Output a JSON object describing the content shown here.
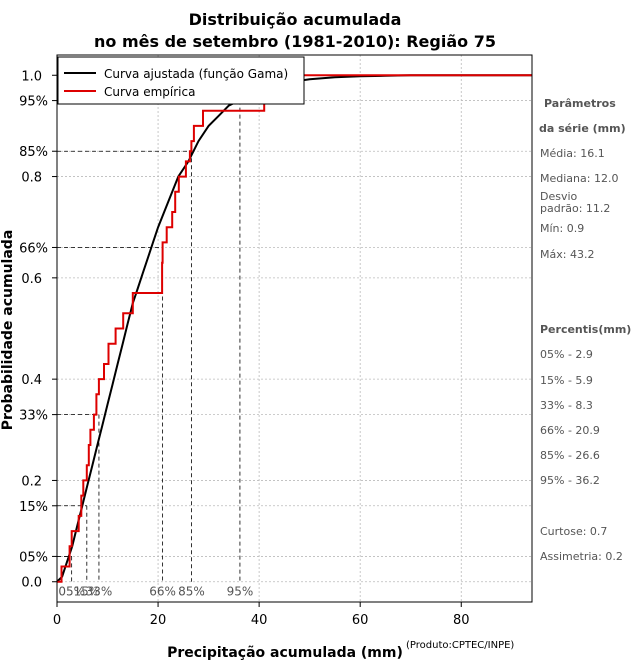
{
  "chart_data": {
    "type": "line",
    "title_line1": "Distribuição acumulada",
    "title_line2": "no mês de setembro (1981-2010): Região 75",
    "xlabel": "Precipitação acumulada (mm)",
    "ylabel": "Probabilidade acumulada",
    "credit": "(Produto:CPTEC/INPE)",
    "xlim": [
      0,
      94
    ],
    "ylim": [
      -0.04,
      1.04
    ],
    "x_ticks": [
      0,
      20,
      40,
      60,
      80
    ],
    "x_tick_labels": [
      "0",
      "20",
      "40",
      "60",
      "80"
    ],
    "y_ticks": [
      0.0,
      0.2,
      0.4,
      0.6,
      0.8,
      1.0
    ],
    "y_tick_labels": [
      "0.0",
      "0.2",
      "0.4",
      "0.6",
      "0.8",
      "1.0"
    ],
    "y_pct_ticks": [
      0.05,
      0.15,
      0.33,
      0.66,
      0.85,
      0.95
    ],
    "y_pct_labels": [
      "05%",
      "15%",
      "33%",
      "66%",
      "85%",
      "95%"
    ],
    "grid": true,
    "legend_position": "top-left",
    "colors": {
      "fitted": "#000000",
      "empirical": "#dd0000",
      "grid": "#bbbbbb",
      "axis_text": "#555555"
    },
    "series": [
      {
        "name": "Curva ajustada (função Gama)",
        "x": [
          0,
          1,
          2,
          3,
          4,
          5,
          6,
          7,
          8,
          9,
          10,
          11,
          12,
          13,
          14,
          15,
          16,
          17,
          18,
          19,
          20,
          22,
          24,
          26,
          28,
          30,
          32,
          34,
          36,
          38,
          40,
          42,
          45,
          50,
          55,
          60,
          65,
          70,
          80,
          94
        ],
        "y": [
          0.0,
          0.01,
          0.04,
          0.07,
          0.11,
          0.15,
          0.19,
          0.23,
          0.27,
          0.31,
          0.35,
          0.39,
          0.43,
          0.47,
          0.51,
          0.55,
          0.58,
          0.61,
          0.64,
          0.67,
          0.7,
          0.75,
          0.8,
          0.83,
          0.87,
          0.9,
          0.92,
          0.94,
          0.95,
          0.96,
          0.97,
          0.98,
          0.985,
          0.992,
          0.996,
          0.998,
          0.999,
          1.0,
          1.0,
          1.0
        ]
      },
      {
        "name": "Curva empírica",
        "x": [
          0,
          0.9,
          2.5,
          2.9,
          4.3,
          4.8,
          5.2,
          5.9,
          6.3,
          6.6,
          7.3,
          7.8,
          8.3,
          9.3,
          10.2,
          11.6,
          13.1,
          15.0,
          20.8,
          20.9,
          21.7,
          22.8,
          23.4,
          24.1,
          25.5,
          26.3,
          26.6,
          27.1,
          28.9,
          30.0,
          36.2,
          41.0,
          43.2,
          94
        ],
        "y": [
          0.0,
          0.03,
          0.07,
          0.1,
          0.13,
          0.17,
          0.2,
          0.23,
          0.27,
          0.3,
          0.33,
          0.37,
          0.4,
          0.43,
          0.47,
          0.5,
          0.53,
          0.57,
          0.63,
          0.67,
          0.7,
          0.73,
          0.77,
          0.8,
          0.83,
          0.85,
          0.87,
          0.9,
          0.93,
          0.93,
          0.93,
          1.0,
          1.0,
          1.0
        ]
      }
    ],
    "percentile_markers": [
      {
        "label": "05%",
        "p": 0.05,
        "x": 2.9
      },
      {
        "label": "15%",
        "p": 0.15,
        "x": 5.9
      },
      {
        "label": "33%",
        "p": 0.33,
        "x": 8.3
      },
      {
        "label": "66%",
        "p": 0.66,
        "x": 20.9
      },
      {
        "label": "85%",
        "p": 0.85,
        "x": 26.6
      },
      {
        "label": "95%",
        "p": 0.95,
        "x": 36.2
      }
    ]
  },
  "sidebar": {
    "params_heading_1": "Parâmetros",
    "params_heading_2": "da série (mm)",
    "media": "Média: 16.1",
    "mediana": "Mediana: 12.0",
    "desvio": "Desvio\npadrão: 11.2",
    "min": "Mín: 0.9",
    "max": "Máx: 43.2",
    "percentis_heading": "Percentis(mm)",
    "p05": "05% - 2.9",
    "p15": "15% - 5.9",
    "p33": "33% - 8.3",
    "p66": "66% - 20.9",
    "p85": "85% - 26.6",
    "p95": "95% - 36.2",
    "curtose": "Curtose: 0.7",
    "assimetria": "Assimetria: 0.2"
  }
}
